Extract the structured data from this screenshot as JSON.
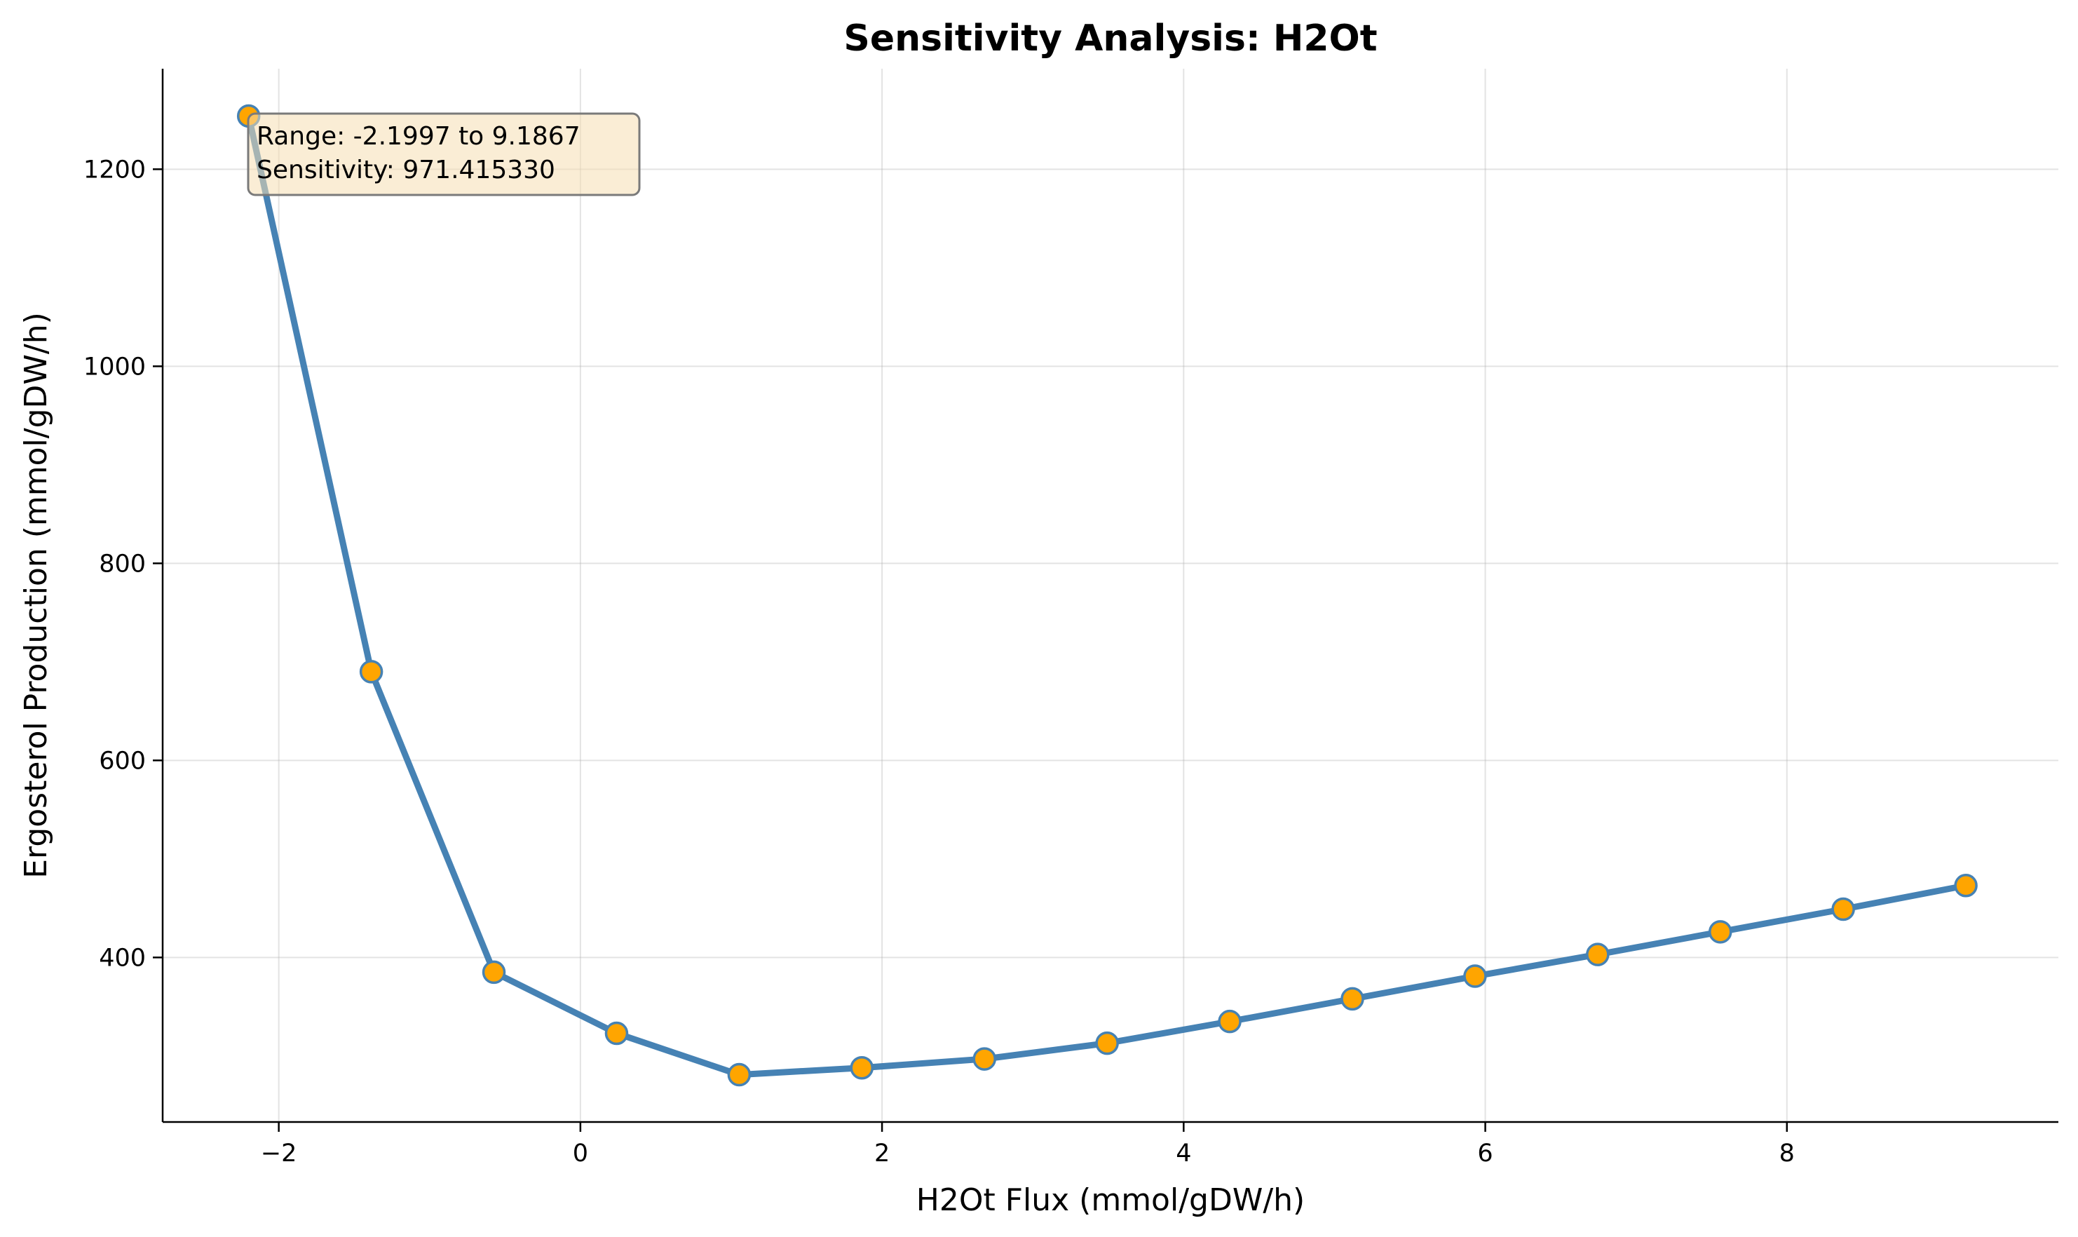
{
  "chart_data": {
    "type": "line",
    "title": "Sensitivity Analysis: H2Ot",
    "xlabel": "H2Ot Flux (mmol/gDW/h)",
    "ylabel": "Ergosterol Production (mmol/gDW/h)",
    "xlim": [
      -2.77,
      9.8
    ],
    "ylim": [
      233,
      1302
    ],
    "xticks": [
      -2,
      0,
      2,
      4,
      6,
      8
    ],
    "xtick_labels": [
      "−2",
      "0",
      "2",
      "4",
      "6",
      "8"
    ],
    "yticks": [
      400,
      600,
      800,
      1000,
      1200
    ],
    "ytick_labels": [
      "400",
      "600",
      "800",
      "1000",
      "1200"
    ],
    "grid": true,
    "line_color": "#4682b4",
    "marker_color": "#ffa500",
    "series": [
      {
        "x": [
          -2.1997,
          -1.3865,
          -0.5734,
          0.2398,
          1.0529,
          1.8661,
          2.6793,
          3.4925,
          4.3056,
          5.1188,
          5.932,
          6.7451,
          7.5583,
          8.3735,
          9.1867
        ],
        "y": [
          1254,
          690,
          385,
          323,
          281,
          288,
          297,
          313,
          335,
          358,
          381,
          403,
          426,
          449,
          473
        ]
      }
    ],
    "annotation": {
      "lines": [
        "Range: -2.1997 to 9.1867",
        "Sensitivity: 971.415330"
      ],
      "position": "top-left",
      "background": "#f5deb3"
    }
  }
}
